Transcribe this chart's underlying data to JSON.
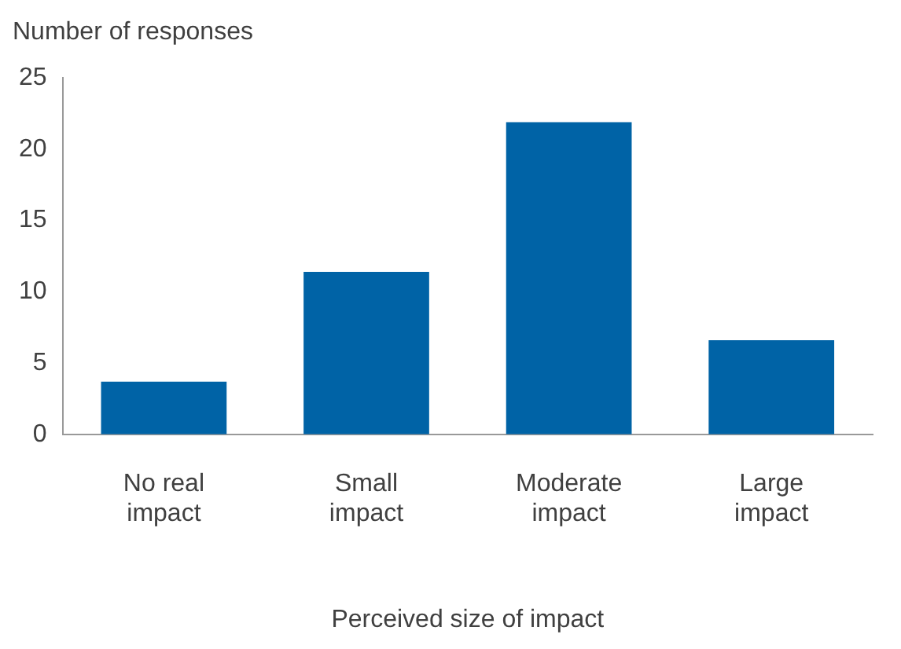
{
  "chart_data": {
    "type": "bar",
    "ylabel": "Number of responses",
    "xlabel": "Perceived size of impact",
    "categories": [
      "No real impact",
      "Small impact",
      "Moderate impact",
      "Large impact"
    ],
    "values": [
      3.7,
      11.4,
      21.9,
      6.6
    ],
    "color": "#0063a6",
    "ylim": [
      0,
      25
    ],
    "yticks": [
      0,
      5,
      10,
      15,
      20,
      25
    ],
    "grid": false,
    "legend": false
  }
}
